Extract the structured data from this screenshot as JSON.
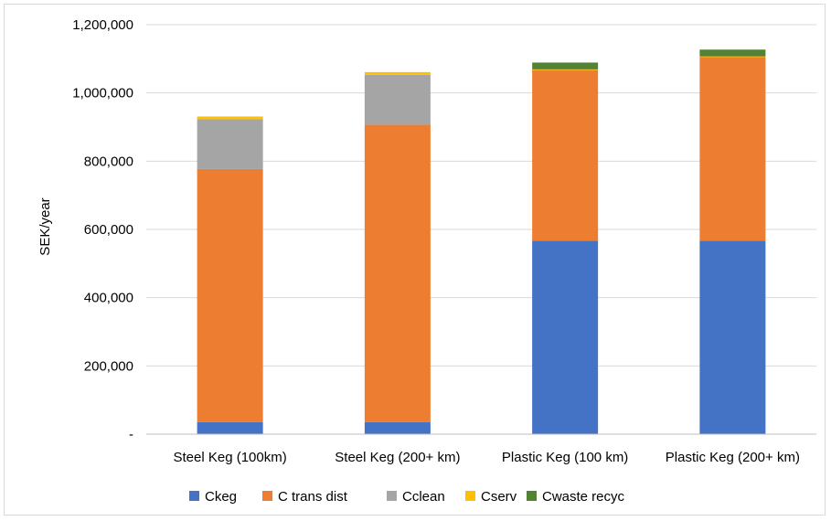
{
  "chart_data": {
    "type": "bar",
    "stacked": true,
    "categories": [
      "Steel Keg (100km)",
      "Steel Keg (200+ km)",
      "Plastic Keg (100 km)",
      "Plastic Keg (200+ km)"
    ],
    "series": [
      {
        "name": "Ckeg",
        "color": "#4472C4",
        "values": [
          35000,
          35000,
          567000,
          567000
        ]
      },
      {
        "name": "C trans dist",
        "color": "#ED7D31",
        "values": [
          742000,
          872000,
          500000,
          538000
        ]
      },
      {
        "name": "Cclean",
        "color": "#A5A5A5",
        "values": [
          146000,
          146000,
          0,
          0
        ]
      },
      {
        "name": "Cserv",
        "color": "#FFC000",
        "values": [
          8000,
          8000,
          2000,
          2000
        ]
      },
      {
        "name": "Cwaste recyc",
        "color": "#548235",
        "values": [
          0,
          0,
          20000,
          20000
        ]
      }
    ],
    "title": "",
    "xlabel": "",
    "ylabel": "SEK/year",
    "ylim": [
      0,
      1200000
    ],
    "yticks": [
      0,
      200000,
      400000,
      600000,
      800000,
      1000000,
      1200000
    ],
    "ytick_labels": [
      "-",
      "200,000",
      "400,000",
      "600,000",
      "800,000",
      "1,000,000",
      "1,200,000"
    ],
    "grid": true,
    "legend_position": "bottom"
  }
}
